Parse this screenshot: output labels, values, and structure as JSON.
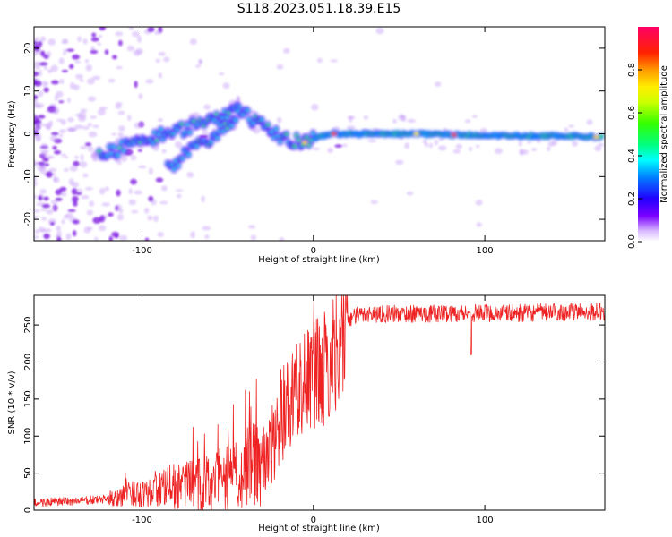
{
  "title": "S118.2023.051.18.39.E15",
  "colors": {
    "snr_line": "#ee2222",
    "speckle": "#b070f0",
    "axis": "#000000"
  },
  "chart_data": [
    {
      "type": "heatmap",
      "xlabel": "Height of straight line (km)",
      "ylabel": "Frequency (Hz)",
      "xlim": [
        -163,
        170
      ],
      "ylim": [
        -25,
        25
      ],
      "x_ticks": [
        -100,
        0,
        100
      ],
      "y_ticks": [
        -20,
        -10,
        0,
        10,
        20
      ],
      "colorbar": {
        "label": "Normalized spectral amplitude",
        "range": [
          0.0,
          1.0
        ],
        "ticks": [
          "0.0",
          "0.2",
          "0.4",
          "0.6",
          "0.8"
        ],
        "colormap": "rainbow"
      },
      "ridge": {
        "x": [
          -125,
          -110,
          -95,
          -80,
          -65,
          -55,
          -45,
          -35,
          -25,
          -18,
          -10,
          -5,
          0,
          10,
          30,
          60,
          90,
          120,
          150,
          168
        ],
        "y": [
          -5,
          -3,
          -1,
          0.5,
          3,
          4,
          6,
          3,
          0.5,
          -1,
          -1.5,
          -2,
          -1,
          0,
          0,
          0,
          -0.3,
          -0.5,
          -0.5,
          -0.8
        ]
      },
      "branch": {
        "x": [
          -85,
          -75,
          -65,
          -55,
          -48,
          -43
        ],
        "y": [
          -8,
          -5,
          -2,
          0,
          3,
          5
        ]
      }
    },
    {
      "type": "line",
      "xlabel": "Height of straight line (km)",
      "ylabel": "SNR (10 * v/v)",
      "xlim": [
        -163,
        170
      ],
      "ylim": [
        0,
        290
      ],
      "x_ticks": [
        -100,
        0,
        100
      ],
      "y_ticks": [
        0,
        50,
        100,
        150,
        200,
        250
      ],
      "series": [
        {
          "trend_x": [
            -163,
            -140,
            -120,
            -100,
            -80,
            -60,
            -45,
            -35,
            -28,
            -20,
            -12,
            -5,
            0,
            5,
            10,
            15,
            20,
            25,
            30,
            40,
            60,
            90,
            120,
            150,
            170
          ],
          "trend_y": [
            10,
            12,
            15,
            25,
            32,
            35,
            45,
            70,
            60,
            120,
            160,
            175,
            180,
            185,
            200,
            230,
            255,
            262,
            265,
            265,
            265,
            266,
            266,
            268,
            268
          ]
        }
      ]
    }
  ]
}
